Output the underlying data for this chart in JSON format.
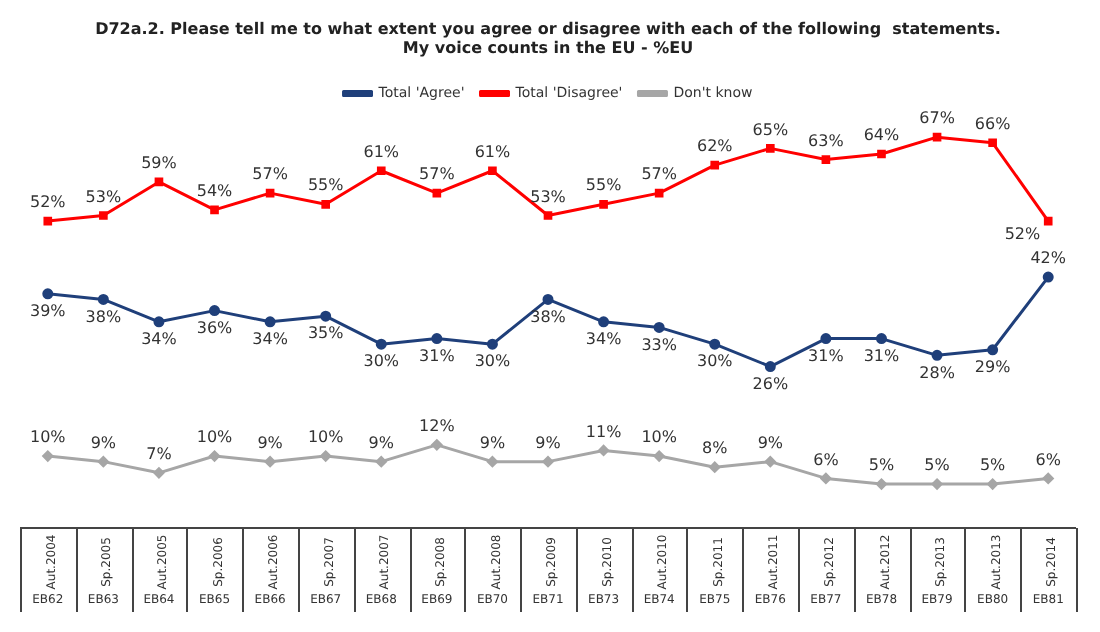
{
  "chart_data": {
    "type": "line",
    "title": "D72a.2. Please tell me to what extent you agree or disagree with each of the following  statements.",
    "subtitle": "My voice counts in the EU - %EU",
    "categories": [
      "Aut.2004\nEB62",
      "Sp.2005\nEB63",
      "Aut.2005\nEB64",
      "Sp.2006\nEB65",
      "Aut.2006\nEB66",
      "Sp.2007\nEB67",
      "Aut.2007\nEB68",
      "Sp.2008\nEB69",
      "Aut.2008\nEB70",
      "Sp.2009\nEB71",
      "Sp.2010\nEB73",
      "Aut.2010\nEB74",
      "Sp.2011\nEB75",
      "Aut.2011\nEB76",
      "Sp.2012\nEB77",
      "Aut.2012\nEB78",
      "Sp.2013\nEB79",
      "Aut.2013\nEB80",
      "Sp.2014\nEB81"
    ],
    "series": [
      {
        "name": "Total 'Agree'",
        "color": "#1f3f7a",
        "marker": "circle",
        "values": [
          39,
          38,
          34,
          36,
          34,
          35,
          30,
          31,
          30,
          38,
          34,
          33,
          30,
          26,
          31,
          31,
          28,
          29,
          42
        ],
        "value_labels": [
          "39%",
          "38%",
          "34%",
          "36%",
          "34%",
          "35%",
          "30%",
          "31%",
          "30%",
          "38%",
          "34%",
          "33%",
          "30%",
          "26%",
          "31%",
          "31%",
          "28%",
          "29%",
          "42%"
        ]
      },
      {
        "name": "Total 'Disagree'",
        "color": "#ff0000",
        "marker": "square",
        "values": [
          52,
          53,
          59,
          54,
          57,
          55,
          61,
          57,
          61,
          53,
          55,
          57,
          62,
          65,
          63,
          64,
          67,
          66,
          52
        ],
        "value_labels": [
          "52%",
          "53%",
          "59%",
          "54%",
          "57%",
          "55%",
          "61%",
          "57%",
          "61%",
          "53%",
          "55%",
          "57%",
          "62%",
          "65%",
          "63%",
          "64%",
          "67%",
          "66%",
          "52%"
        ]
      },
      {
        "name": "Don't know",
        "color": "#a6a6a6",
        "marker": "diamond",
        "values": [
          10,
          9,
          7,
          10,
          9,
          10,
          9,
          12,
          9,
          9,
          11,
          10,
          8,
          9,
          6,
          5,
          5,
          5,
          6
        ],
        "value_labels": [
          "10%",
          "9%",
          "7%",
          "10%",
          "9%",
          "10%",
          "9%",
          "12%",
          "9%",
          "9%",
          "11%",
          "10%",
          "8%",
          "9%",
          "6%",
          "5%",
          "5%",
          "5%",
          "6%"
        ]
      }
    ],
    "legend": "top"
  }
}
